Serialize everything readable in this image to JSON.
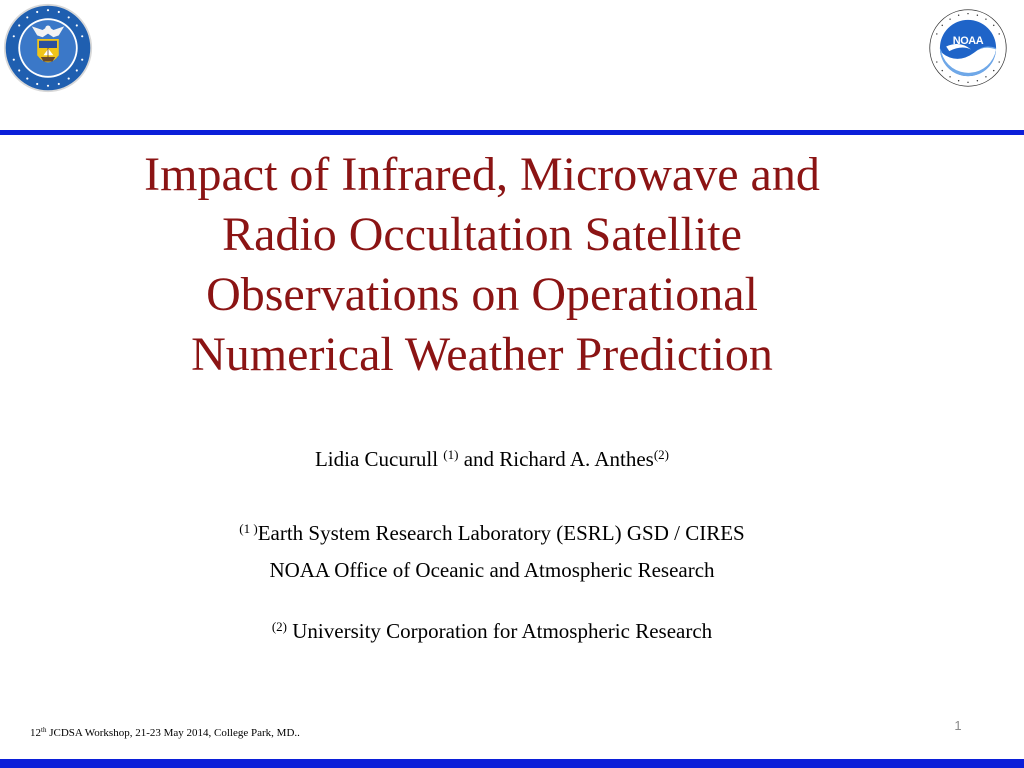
{
  "slide": {
    "title_lines": [
      "Impact of Infrared, Microwave and",
      "Radio Occultation Satellite",
      "Observations on Operational",
      "Numerical Weather Prediction"
    ],
    "authors": {
      "author1": "Lidia Cucurull",
      "author1_mark": "(1)",
      "conj": "and Richard A. Anthes",
      "author2_mark": "(2)"
    },
    "affiliation1": {
      "mark": "(1 )",
      "line1": "Earth System Research Laboratory (ESRL)  GSD / CIRES",
      "line2": "NOAA Office of Oceanic and Atmospheric Research"
    },
    "affiliation2": {
      "mark": "(2)",
      "text": "University Corporation for Atmospheric Research"
    },
    "footer": {
      "number": "12",
      "suffix": "th",
      "text": "JCDSA Workshop, 21-23 May 2014, College Park, MD.."
    },
    "page_number": "1"
  },
  "logos": {
    "left": "department-of-commerce-seal",
    "right": "noaa-logo"
  },
  "colors": {
    "title": "#8b1414",
    "rule": "#0b1fd9",
    "noaa_blue": "#1f64c8",
    "commerce_blue": "#1f5fb0"
  }
}
